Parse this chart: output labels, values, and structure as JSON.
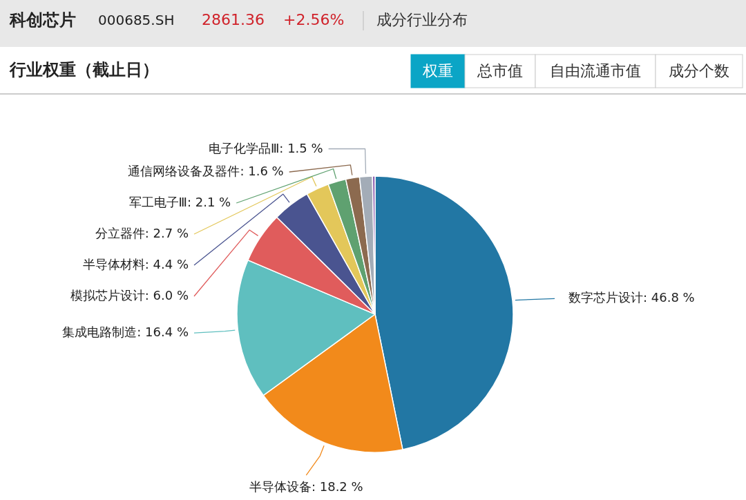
{
  "chart_data": {
    "type": "pie",
    "title": "行业权重（截止日）",
    "annotations": [
      "科创芯片",
      "000685.SH",
      "2861.36",
      "+2.56%",
      "成分行业分布",
      "权重",
      "总市值",
      "自由流通市值",
      "成分个数"
    ],
    "categories": [
      "数字芯片设计",
      "半导体设备",
      "集成电路制造",
      "模拟芯片设计",
      "半导体材料",
      "分立器件",
      "军工电子Ⅲ",
      "通信网络设备及器件",
      "电子化学品Ⅲ",
      null
    ],
    "values": [
      46.8,
      18.2,
      16.4,
      6.0,
      4.4,
      2.7,
      2.1,
      1.6,
      1.5,
      0.3
    ],
    "value_labels": [
      "46.8 %",
      "18.2 %",
      "16.4 %",
      "6.0 %",
      "4.4 %",
      "2.7 %",
      "2.1 %",
      "1.6 %",
      "1.5 %",
      null
    ],
    "colors": [
      "#2277a4",
      "#f28a1b",
      "#5fbfbf",
      "#e05c5c",
      "#4a5490",
      "#e3c75a",
      "#5fa170",
      "#8c6a4f",
      "#a3acb7",
      "#8e5fb0"
    ]
  }
}
